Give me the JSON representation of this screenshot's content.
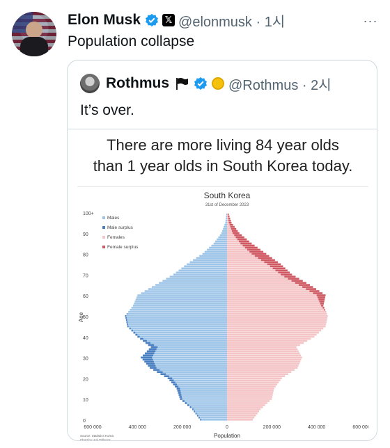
{
  "tweet": {
    "author_name": "Elon Musk",
    "handle_time": "@elonmusk · 1시",
    "text": "Population collapse",
    "more_glyph": "···"
  },
  "quoted": {
    "author_name": "Rothmus",
    "handle_time": "@Rothmus · 2시",
    "text": "It’s over.",
    "media_headline_line1": "There are more living 84 year olds",
    "media_headline_line2": "than 1 year olds in South Korea today."
  },
  "icons": {
    "verified": "verified-badge-icon",
    "x_logo": "x-logo-icon",
    "flag": "black-flag-icon",
    "gold": "gold-badge-icon"
  },
  "colors": {
    "verified_blue": "#1d9bf0",
    "males": "#9ec5e8",
    "male_surplus": "#4a7fc1",
    "females": "#f4c4c6",
    "female_surplus": "#cf5a63"
  },
  "chart_data": {
    "type": "bar",
    "orientation": "population-pyramid",
    "title": "South Korea",
    "subtitle": "31st of December 2023",
    "xlabel": "Population",
    "ylabel": "Age",
    "xlim": [
      -600000,
      600000
    ],
    "ylim": [
      0,
      100
    ],
    "x_ticks": [
      "600 000",
      "400 000",
      "200 000",
      "0",
      "200 000",
      "400 000",
      "600 000"
    ],
    "y_ticks": [
      "0",
      "10",
      "20",
      "30",
      "40",
      "50",
      "60",
      "70",
      "80",
      "90",
      "100+"
    ],
    "legend": [
      "Males",
      "Male surplus",
      "Females",
      "Female surplus"
    ],
    "legend_position": "top-left",
    "source": "Source: Statistics Korea",
    "credit": "Chart by: Kaj Tallungs",
    "ages": [
      0,
      5,
      10,
      15,
      20,
      25,
      30,
      35,
      40,
      45,
      50,
      55,
      60,
      65,
      70,
      75,
      80,
      85,
      90,
      95,
      100
    ],
    "males": [
      120000,
      155000,
      210000,
      225000,
      265000,
      345000,
      385000,
      340000,
      400000,
      445000,
      455000,
      420000,
      400000,
      320000,
      240000,
      180000,
      110000,
      60000,
      25000,
      8000,
      2000
    ],
    "females": [
      115000,
      150000,
      200000,
      210000,
      245000,
      315000,
      335000,
      310000,
      390000,
      440000,
      450000,
      430000,
      440000,
      370000,
      290000,
      240000,
      175000,
      110000,
      55000,
      20000,
      5000
    ]
  }
}
